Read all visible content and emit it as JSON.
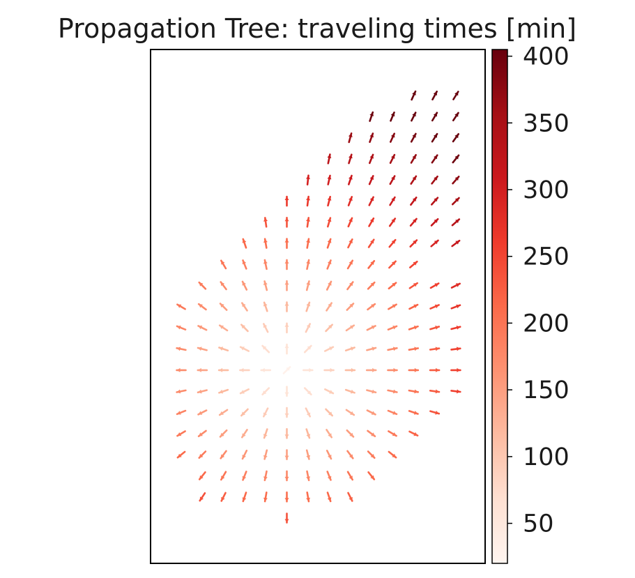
{
  "chart_data": {
    "type": "quiver",
    "title": "Propagation Tree: traveling times [min]",
    "xlabel": "",
    "ylabel": "",
    "colormap": "Reds",
    "colorbar": {
      "range": [
        20,
        405
      ],
      "ticks": [
        50,
        100,
        150,
        200,
        250,
        300,
        350,
        400
      ],
      "tick_labels": [
        "50",
        "100",
        "150",
        "200",
        "250",
        "300",
        "350",
        "400"
      ]
    },
    "grid": false,
    "axis_ticks_visible": false,
    "origin_cell": [
      5,
      13
    ],
    "rows": [
      {
        "row": 0,
        "cols": [
          11,
          12,
          13
        ]
      },
      {
        "row": 1,
        "cols": [
          9,
          10,
          11,
          12,
          13
        ]
      },
      {
        "row": 2,
        "cols": [
          8,
          9,
          10,
          11,
          12,
          13
        ]
      },
      {
        "row": 3,
        "cols": [
          7,
          8,
          9,
          10,
          11,
          12,
          13
        ]
      },
      {
        "row": 4,
        "cols": [
          6,
          7,
          8,
          9,
          10,
          11,
          12,
          13
        ]
      },
      {
        "row": 5,
        "cols": [
          5,
          6,
          7,
          8,
          9,
          10,
          11,
          12,
          13
        ]
      },
      {
        "row": 6,
        "cols": [
          4,
          5,
          6,
          7,
          8,
          9,
          10,
          11,
          12,
          13
        ]
      },
      {
        "row": 7,
        "cols": [
          3,
          4,
          5,
          6,
          7,
          8,
          9,
          10,
          11,
          12,
          13
        ]
      },
      {
        "row": 8,
        "cols": [
          2,
          3,
          4,
          5,
          6,
          7,
          8,
          9,
          10,
          11
        ]
      },
      {
        "row": 9,
        "cols": [
          1,
          2,
          3,
          4,
          5,
          6,
          7,
          8,
          9,
          10,
          11,
          12,
          13
        ]
      },
      {
        "row": 10,
        "cols": [
          0,
          1,
          2,
          3,
          4,
          5,
          6,
          7,
          8,
          9,
          10,
          11,
          12,
          13
        ]
      },
      {
        "row": 11,
        "cols": [
          0,
          1,
          2,
          3,
          4,
          5,
          6,
          7,
          8,
          9,
          10,
          11,
          12,
          13
        ]
      },
      {
        "row": 12,
        "cols": [
          0,
          1,
          2,
          3,
          4,
          5,
          6,
          7,
          8,
          9,
          10,
          11,
          12,
          13
        ]
      },
      {
        "row": 13,
        "cols": [
          0,
          1,
          2,
          3,
          4,
          5,
          6,
          7,
          8,
          9,
          10,
          11,
          12,
          13
        ]
      },
      {
        "row": 14,
        "cols": [
          0,
          1,
          2,
          3,
          4,
          5,
          6,
          7,
          8,
          9,
          10,
          11,
          12,
          13
        ]
      },
      {
        "row": 15,
        "cols": [
          0,
          1,
          2,
          3,
          4,
          5,
          6,
          7,
          8,
          9,
          10,
          11,
          12
        ]
      },
      {
        "row": 16,
        "cols": [
          0,
          1,
          2,
          3,
          4,
          5,
          6,
          7,
          8,
          9,
          10,
          11
        ]
      },
      {
        "row": 17,
        "cols": [
          0,
          1,
          2,
          3,
          4,
          5,
          6,
          7,
          8,
          9,
          10
        ]
      },
      {
        "row": 18,
        "cols": [
          1,
          2,
          3,
          4,
          5,
          6,
          7,
          8,
          9
        ]
      },
      {
        "row": 19,
        "cols": [
          1,
          2,
          3,
          4,
          5,
          6,
          7,
          8
        ]
      },
      {
        "row": 20,
        "cols": [
          5
        ]
      }
    ]
  }
}
